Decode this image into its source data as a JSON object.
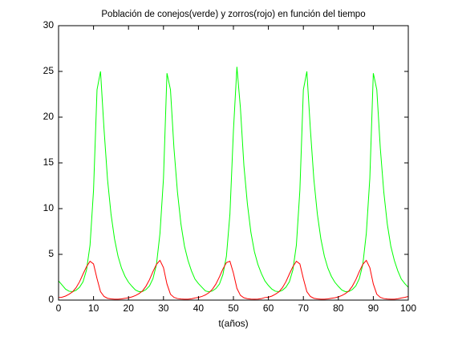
{
  "chart_data": {
    "type": "line",
    "title": "Población de conejos(verde) y zorros(rojo) en función del tiempo",
    "xlabel": "t(años)",
    "x": [
      0,
      1,
      2,
      3,
      4,
      5,
      6,
      7,
      8,
      9,
      10,
      11,
      12,
      13,
      14,
      15,
      16,
      17,
      18,
      19,
      20,
      21,
      22,
      23,
      24,
      25,
      26,
      27,
      28,
      29,
      30,
      31,
      32,
      33,
      34,
      35,
      36,
      37,
      38,
      39,
      40,
      41,
      42,
      43,
      44,
      45,
      46,
      47,
      48,
      49,
      50,
      51,
      52,
      53,
      54,
      55,
      56,
      57,
      58,
      59,
      60,
      61,
      62,
      63,
      64,
      65,
      66,
      67,
      68,
      69,
      70,
      71,
      72,
      73,
      74,
      75,
      76,
      77,
      78,
      79,
      80,
      81,
      82,
      83,
      84,
      85,
      86,
      87,
      88,
      89,
      90,
      91,
      92,
      93,
      94,
      95,
      96,
      97,
      98,
      99,
      100
    ],
    "series": [
      {
        "color": "#00ff00",
        "values": [
          2.1,
          1.65,
          1.2,
          0.97,
          0.92,
          1.07,
          1.4,
          2.0,
          3.3,
          6,
          12,
          23,
          25,
          18.7,
          13.2,
          9.4,
          6.7,
          4.8,
          3.5,
          2.6,
          1.95,
          1.5,
          1.1,
          0.92,
          0.94,
          1.15,
          1.55,
          2.35,
          3.9,
          7.3,
          13.3,
          24.8,
          23,
          16.6,
          11.8,
          8.3,
          5.9,
          4.35,
          3.2,
          2.3,
          1.8,
          1.4,
          1.0,
          0.9,
          1.0,
          1.27,
          1.75,
          2.8,
          4.8,
          9.4,
          18.5,
          25.5,
          21,
          14.7,
          10.5,
          7.4,
          5.3,
          3.9,
          2.9,
          2.1,
          1.6,
          1.2,
          0.97,
          0.92,
          1.07,
          1.4,
          2.0,
          3.3,
          6,
          12,
          23,
          25,
          18.7,
          13.2,
          9.4,
          6.7,
          4.8,
          3.5,
          2.6,
          1.95,
          1.5,
          1.1,
          0.92,
          0.94,
          1.15,
          1.55,
          2.35,
          3.9,
          7.3,
          13.3,
          24.8,
          23,
          16.6,
          11.8,
          8.3,
          5.9,
          4.35,
          3.2,
          2.3,
          1.8,
          1.4
        ]
      },
      {
        "color": "#ff0000",
        "values": [
          0.28,
          0.32,
          0.44,
          0.64,
          0.9,
          1.35,
          2.0,
          2.85,
          3.65,
          4.25,
          3.95,
          2.35,
          0.92,
          0.4,
          0.2,
          0.13,
          0.1,
          0.1,
          0.13,
          0.2,
          0.25,
          0.35,
          0.5,
          0.71,
          1.0,
          1.52,
          2.23,
          3.12,
          3.91,
          4.34,
          3.55,
          1.76,
          0.64,
          0.3,
          0.17,
          0.12,
          0.1,
          0.1,
          0.14,
          0.23,
          0.3,
          0.4,
          0.57,
          0.81,
          1.19,
          1.76,
          2.54,
          3.4,
          4.1,
          4.25,
          2.95,
          1.28,
          0.52,
          0.25,
          0.15,
          0.11,
          0.1,
          0.11,
          0.16,
          0.28,
          0.32,
          0.44,
          0.64,
          0.9,
          1.35,
          2.0,
          2.85,
          3.65,
          4.25,
          3.95,
          2.35,
          0.92,
          0.4,
          0.2,
          0.13,
          0.1,
          0.1,
          0.13,
          0.2,
          0.25,
          0.35,
          0.5,
          0.71,
          1.0,
          1.52,
          2.23,
          3.12,
          3.91,
          4.34,
          3.55,
          1.76,
          0.64,
          0.3,
          0.17,
          0.12,
          0.1,
          0.1,
          0.14,
          0.23,
          0.3,
          0.4
        ]
      }
    ],
    "xlim": [
      0,
      100
    ],
    "xticks": [
      0,
      10,
      20,
      30,
      40,
      50,
      60,
      70,
      80,
      90,
      100
    ],
    "ylim": [
      0,
      30
    ],
    "yticks": [
      0,
      5,
      10,
      15,
      20,
      25,
      30
    ]
  }
}
